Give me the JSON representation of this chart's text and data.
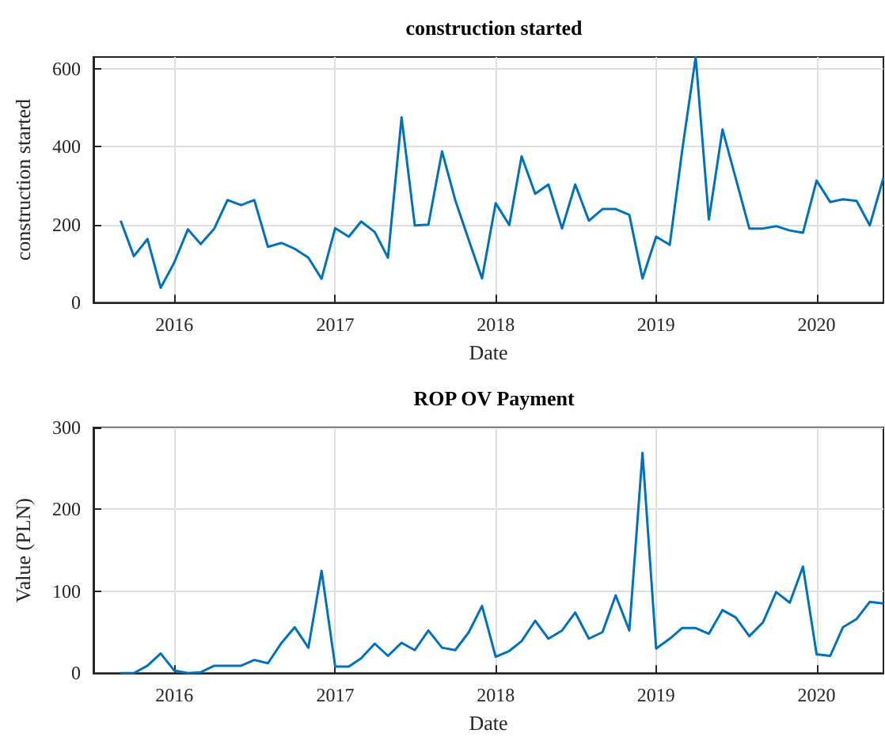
{
  "chart_data": [
    {
      "type": "line",
      "title": "construction started",
      "xlabel": "Date",
      "ylabel": "construction started",
      "x": [
        "2015-09",
        "2015-10",
        "2015-11",
        "2015-12",
        "2016-01",
        "2016-02",
        "2016-03",
        "2016-04",
        "2016-05",
        "2016-06",
        "2016-07",
        "2016-08",
        "2016-09",
        "2016-10",
        "2016-11",
        "2016-12",
        "2017-01",
        "2017-02",
        "2017-03",
        "2017-04",
        "2017-05",
        "2017-06",
        "2017-07",
        "2017-08",
        "2017-09",
        "2017-10",
        "2017-11",
        "2017-12",
        "2018-01",
        "2018-02",
        "2018-03",
        "2018-04",
        "2018-05",
        "2018-06",
        "2018-07",
        "2018-08",
        "2018-09",
        "2018-10",
        "2018-11",
        "2018-12",
        "2019-01",
        "2019-02",
        "2019-03",
        "2019-04",
        "2019-05",
        "2019-06",
        "2019-07",
        "2019-08",
        "2019-09",
        "2019-10",
        "2019-11",
        "2019-12",
        "2020-01",
        "2020-02",
        "2020-03",
        "2020-04",
        "2020-05",
        "2020-06"
      ],
      "series": [
        {
          "color": "#0072bd",
          "values": [
            210,
            119,
            163,
            38,
            103,
            188,
            150,
            190,
            263,
            250,
            263,
            143,
            153,
            138,
            115,
            61,
            191,
            169,
            208,
            181,
            115,
            475,
            198,
            200,
            388,
            263,
            160,
            62,
            255,
            199,
            375,
            279,
            303,
            190,
            303,
            210,
            240,
            240,
            225,
            62,
            169,
            148,
            388,
            630,
            213,
            444,
            319,
            190,
            190,
            196,
            185,
            179,
            313,
            258,
            265,
            261,
            198,
            320
          ]
        }
      ],
      "xlim": [
        "2015-07",
        "2020-06"
      ],
      "xticks": [
        "2016",
        "2017",
        "2018",
        "2019",
        "2020"
      ],
      "ylim": [
        0,
        630
      ],
      "yticks": [
        0,
        200,
        400,
        600
      ],
      "grid": true,
      "marker": "none",
      "line_style": "solid"
    },
    {
      "type": "line",
      "title": "ROP OV Payment",
      "xlabel": "Date",
      "ylabel": "Value (PLN)",
      "x": [
        "2015-09",
        "2015-10",
        "2015-11",
        "2015-12",
        "2016-01",
        "2016-02",
        "2016-03",
        "2016-04",
        "2016-05",
        "2016-06",
        "2016-07",
        "2016-08",
        "2016-09",
        "2016-10",
        "2016-11",
        "2016-12",
        "2017-01",
        "2017-02",
        "2017-03",
        "2017-04",
        "2017-05",
        "2017-06",
        "2017-07",
        "2017-08",
        "2017-09",
        "2017-10",
        "2017-11",
        "2017-12",
        "2018-01",
        "2018-02",
        "2018-03",
        "2018-04",
        "2018-05",
        "2018-06",
        "2018-07",
        "2018-08",
        "2018-09",
        "2018-10",
        "2018-11",
        "2018-12",
        "2019-01",
        "2019-02",
        "2019-03",
        "2019-04",
        "2019-05",
        "2019-06",
        "2019-07",
        "2019-08",
        "2019-09",
        "2019-10",
        "2019-11",
        "2019-12",
        "2020-01",
        "2020-02",
        "2020-03",
        "2020-04",
        "2020-05",
        "2020-06"
      ],
      "series": [
        {
          "color": "#0072bd",
          "values": [
            0,
            0,
            9,
            24,
            3,
            0,
            1,
            9,
            9,
            9,
            16,
            12,
            37,
            56,
            31,
            125,
            8,
            8,
            18,
            36,
            21,
            37,
            28,
            52,
            31,
            28,
            50,
            82,
            20,
            27,
            39,
            64,
            42,
            52,
            74,
            42,
            50,
            95,
            52,
            269,
            30,
            42,
            55,
            55,
            48,
            77,
            68,
            45,
            62,
            99,
            86,
            130,
            23,
            21,
            56,
            66,
            87,
            85
          ]
        }
      ],
      "xlim": [
        "2015-07",
        "2020-06"
      ],
      "xticks": [
        "2016",
        "2017",
        "2018",
        "2019",
        "2020"
      ],
      "ylim": [
        0,
        300
      ],
      "yticks": [
        0,
        100,
        200,
        300
      ],
      "grid": true,
      "marker": "none",
      "line_style": "solid"
    }
  ]
}
